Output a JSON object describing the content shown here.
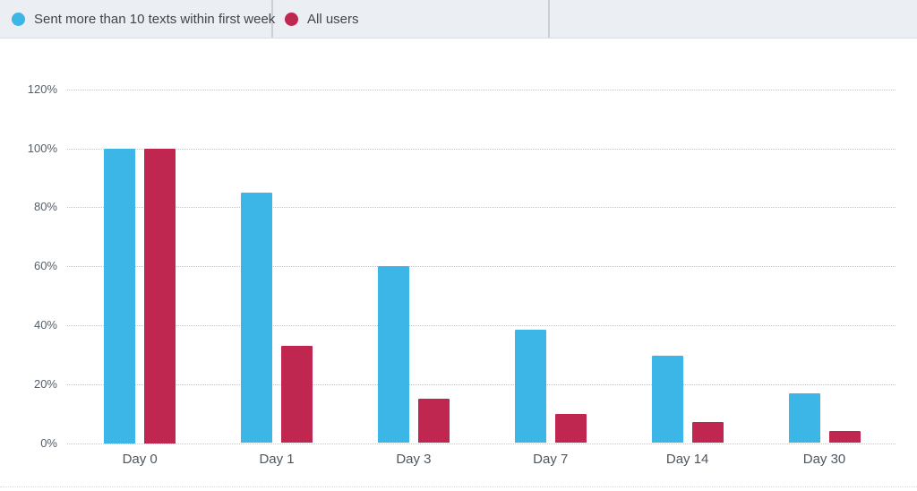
{
  "legend": {
    "items": [
      {
        "label": "Sent more than 10 texts within first week",
        "color": "#3cb5e7"
      },
      {
        "label": "All users",
        "color": "#bf2750"
      }
    ]
  },
  "chart_data": {
    "type": "bar",
    "title": "",
    "categories": [
      "Day 0",
      "Day 1",
      "Day 3",
      "Day 7",
      "Day 14",
      "Day 30"
    ],
    "series": [
      {
        "name": "Sent more than 10 texts within first week",
        "color": "#3cb5e7",
        "values": [
          100,
          85,
          60,
          38.5,
          29.5,
          17
        ]
      },
      {
        "name": "All users",
        "color": "#bf2750",
        "values": [
          100,
          33,
          15,
          10,
          7,
          4
        ]
      }
    ],
    "xlabel": "",
    "ylabel": "",
    "y_ticks": [
      "120%",
      "100%",
      "80%",
      "60%",
      "40%",
      "20%",
      "0%"
    ],
    "ylim": [
      0,
      120
    ],
    "grid": "horizontal-dotted",
    "legend_position": "top"
  }
}
